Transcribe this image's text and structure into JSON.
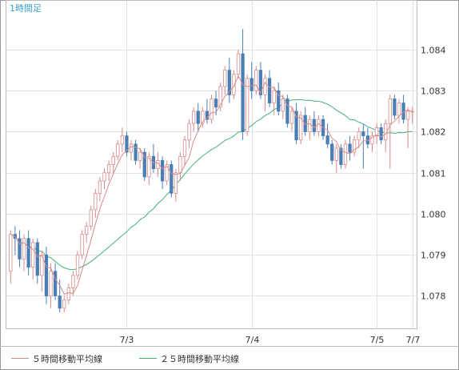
{
  "chart_data": {
    "type": "candlestick",
    "timeframe_label": "1時間足",
    "y_ticks": [
      "1.084",
      "1.083",
      "1.082",
      "1.081",
      "1.080",
      "1.079",
      "1.078"
    ],
    "y_tick_values": [
      1.084,
      1.083,
      1.082,
      1.081,
      1.08,
      1.079,
      1.078
    ],
    "ylim": [
      1.0772,
      1.0852
    ],
    "x_ticks": [
      {
        "label": "7/3",
        "index": 26
      },
      {
        "label": "7/4",
        "index": 54
      },
      {
        "label": "7/5",
        "index": 82
      },
      {
        "label": "7/7",
        "index": 90
      }
    ],
    "grid": true,
    "legend": [
      {
        "label": "５時間移動平均線",
        "color": "#d98a8a"
      },
      {
        "label": "２５時間移動平均線",
        "color": "#45b07a"
      }
    ],
    "colors": {
      "up": "#ffffff",
      "up_border": "#d98a8a",
      "down": "#4a7fb5",
      "ma5": "#d98a8a",
      "ma25": "#45b07a",
      "title": "#3aa0d0"
    },
    "ohlc": [
      [
        1.0786,
        1.0796,
        1.0783,
        1.0795
      ],
      [
        1.0795,
        1.0797,
        1.079,
        1.0794
      ],
      [
        1.0794,
        1.0796,
        1.0787,
        1.0789
      ],
      [
        1.0789,
        1.0795,
        1.0786,
        1.0794
      ],
      [
        1.0794,
        1.0796,
        1.0785,
        1.0787
      ],
      [
        1.0787,
        1.0794,
        1.0784,
        1.0793
      ],
      [
        1.0793,
        1.0794,
        1.0783,
        1.0785
      ],
      [
        1.0785,
        1.0791,
        1.0781,
        1.079
      ],
      [
        1.079,
        1.0792,
        1.0778,
        1.078
      ],
      [
        1.078,
        1.0788,
        1.0777,
        1.0786
      ],
      [
        1.0786,
        1.0788,
        1.0779,
        1.078
      ],
      [
        1.078,
        1.0784,
        1.0776,
        1.0777
      ],
      [
        1.0777,
        1.078,
        1.0776,
        1.0779
      ],
      [
        1.0779,
        1.0783,
        1.0778,
        1.0782
      ],
      [
        1.0782,
        1.0786,
        1.078,
        1.0785
      ],
      [
        1.0785,
        1.0791,
        1.0784,
        1.079
      ],
      [
        1.079,
        1.0796,
        1.0789,
        1.0795
      ],
      [
        1.0795,
        1.0798,
        1.0793,
        1.0797
      ],
      [
        1.0797,
        1.0802,
        1.0796,
        1.0801
      ],
      [
        1.0801,
        1.0806,
        1.0799,
        1.0805
      ],
      [
        1.0805,
        1.0809,
        1.0803,
        1.0808
      ],
      [
        1.0808,
        1.0811,
        1.0806,
        1.081
      ],
      [
        1.081,
        1.0813,
        1.0808,
        1.0812
      ],
      [
        1.0812,
        1.0815,
        1.081,
        1.0814
      ],
      [
        1.0814,
        1.0818,
        1.0813,
        1.0817
      ],
      [
        1.0817,
        1.0821,
        1.0815,
        1.0819
      ],
      [
        1.0819,
        1.082,
        1.0814,
        1.0815
      ],
      [
        1.0815,
        1.0818,
        1.0813,
        1.0817
      ],
      [
        1.0817,
        1.0818,
        1.0812,
        1.0813
      ],
      [
        1.0813,
        1.0816,
        1.0811,
        1.0815
      ],
      [
        1.0815,
        1.0816,
        1.0808,
        1.0809
      ],
      [
        1.0809,
        1.0815,
        1.0807,
        1.0814
      ],
      [
        1.0814,
        1.0817,
        1.081,
        1.0811
      ],
      [
        1.0811,
        1.0815,
        1.0809,
        1.0813
      ],
      [
        1.0813,
        1.0814,
        1.0806,
        1.0808
      ],
      [
        1.0808,
        1.0813,
        1.0807,
        1.0812
      ],
      [
        1.0812,
        1.0813,
        1.0804,
        1.0805
      ],
      [
        1.0805,
        1.0811,
        1.0803,
        1.081
      ],
      [
        1.081,
        1.0815,
        1.0808,
        1.0814
      ],
      [
        1.0814,
        1.0819,
        1.0812,
        1.0818
      ],
      [
        1.0818,
        1.0823,
        1.0816,
        1.0822
      ],
      [
        1.0822,
        1.0826,
        1.082,
        1.0825
      ],
      [
        1.0825,
        1.0827,
        1.082,
        1.0822
      ],
      [
        1.0822,
        1.0826,
        1.0821,
        1.0825
      ],
      [
        1.0825,
        1.0828,
        1.0822,
        1.0823
      ],
      [
        1.0823,
        1.0829,
        1.0822,
        1.0828
      ],
      [
        1.0828,
        1.083,
        1.0824,
        1.0826
      ],
      [
        1.0826,
        1.0832,
        1.0825,
        1.0831
      ],
      [
        1.0831,
        1.0836,
        1.0829,
        1.0835
      ],
      [
        1.0835,
        1.0838,
        1.0827,
        1.0829
      ],
      [
        1.0829,
        1.0835,
        1.0828,
        1.0834
      ],
      [
        1.0834,
        1.084,
        1.0833,
        1.0839
      ],
      [
        1.0839,
        1.0845,
        1.0818,
        1.082
      ],
      [
        1.082,
        1.0834,
        1.0819,
        1.0833
      ],
      [
        1.0833,
        1.0837,
        1.0828,
        1.083
      ],
      [
        1.083,
        1.0836,
        1.0829,
        1.0835
      ],
      [
        1.0835,
        1.0837,
        1.0828,
        1.0829
      ],
      [
        1.0829,
        1.0834,
        1.0825,
        1.0833
      ],
      [
        1.0833,
        1.0835,
        1.0826,
        1.0827
      ],
      [
        1.0827,
        1.0831,
        1.0824,
        1.083
      ],
      [
        1.083,
        1.0832,
        1.0824,
        1.0825
      ],
      [
        1.0825,
        1.0829,
        1.0823,
        1.0828
      ],
      [
        1.0828,
        1.0829,
        1.0821,
        1.0822
      ],
      [
        1.0822,
        1.0826,
        1.082,
        1.0825
      ],
      [
        1.0825,
        1.0827,
        1.0817,
        1.0818
      ],
      [
        1.0818,
        1.0825,
        1.0817,
        1.0824
      ],
      [
        1.0824,
        1.0826,
        1.0819,
        1.082
      ],
      [
        1.082,
        1.0824,
        1.0818,
        1.0823
      ],
      [
        1.0823,
        1.0825,
        1.0819,
        1.082
      ],
      [
        1.082,
        1.0824,
        1.0819,
        1.0823
      ],
      [
        1.0823,
        1.0824,
        1.0818,
        1.0819
      ],
      [
        1.0819,
        1.0822,
        1.0816,
        1.0817
      ],
      [
        1.0817,
        1.0818,
        1.0812,
        1.0813
      ],
      [
        1.0813,
        1.0817,
        1.081,
        1.0816
      ],
      [
        1.0816,
        1.0817,
        1.0811,
        1.0812
      ],
      [
        1.0812,
        1.0818,
        1.0811,
        1.0817
      ],
      [
        1.0817,
        1.0819,
        1.0813,
        1.0815
      ],
      [
        1.0815,
        1.0819,
        1.0814,
        1.0818
      ],
      [
        1.0818,
        1.0821,
        1.0816,
        1.082
      ],
      [
        1.082,
        1.0822,
        1.0811,
        1.0819
      ],
      [
        1.0819,
        1.0821,
        1.0816,
        1.0817
      ],
      [
        1.0817,
        1.082,
        1.0815,
        1.0819
      ],
      [
        1.0819,
        1.0822,
        1.0817,
        1.0821
      ],
      [
        1.0821,
        1.0822,
        1.0817,
        1.0818
      ],
      [
        1.0818,
        1.0823,
        1.0815,
        1.0822
      ],
      [
        1.0822,
        1.0829,
        1.0811,
        1.0828
      ],
      [
        1.0828,
        1.0829,
        1.0823,
        1.0824
      ],
      [
        1.0824,
        1.0828,
        1.0822,
        1.0827
      ],
      [
        1.0827,
        1.0829,
        1.0822,
        1.0823
      ],
      [
        1.0823,
        1.0826,
        1.0816,
        1.0825
      ],
      [
        1.0825,
        1.0826,
        1.0822,
        1.0825
      ]
    ]
  }
}
